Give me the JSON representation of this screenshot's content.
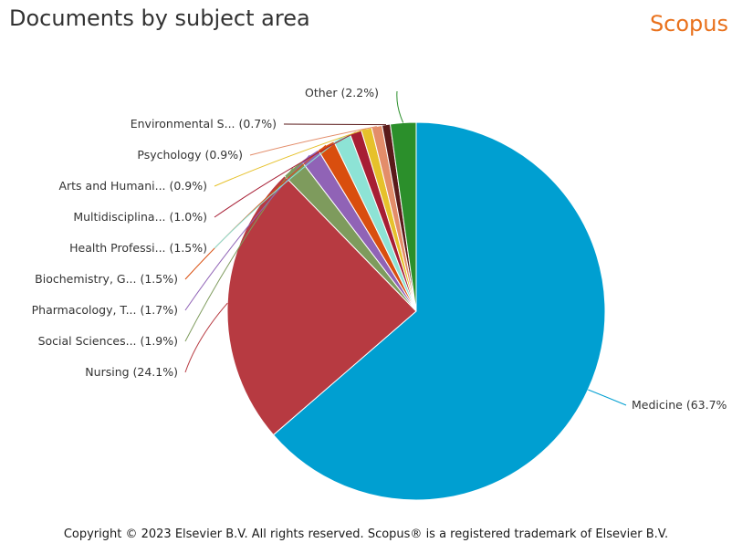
{
  "header": {
    "title": "Documents by subject area",
    "brand": "Scopus"
  },
  "footer": {
    "copyright": "Copyright © 2023 Elsevier B.V. All rights reserved. Scopus® is a registered trademark of Elsevier B.V."
  },
  "chart_data": {
    "type": "pie",
    "title": "Documents by subject area",
    "slices": [
      {
        "name": "Medicine",
        "label": "Medicine (63.7%",
        "value": 63.7,
        "color": "#009fd1"
      },
      {
        "name": "Nursing",
        "label": "Nursing (24.1%)",
        "value": 24.1,
        "color": "#b73a41"
      },
      {
        "name": "Social Sciences...",
        "label": "Social Sciences... (1.9%)",
        "value": 1.9,
        "color": "#7e9b5d"
      },
      {
        "name": "Pharmacology, T...",
        "label": "Pharmacology, T... (1.7%)",
        "value": 1.7,
        "color": "#9063b6"
      },
      {
        "name": "Biochemistry, G...",
        "label": "Biochemistry, G... (1.5%)",
        "value": 1.5,
        "color": "#d94e0e"
      },
      {
        "name": "Health Professi...",
        "label": "Health Professi... (1.5%)",
        "value": 1.5,
        "color": "#8de3d5"
      },
      {
        "name": "Multidisciplina...",
        "label": "Multidisciplina... (1.0%)",
        "value": 1.0,
        "color": "#a71e34"
      },
      {
        "name": "Arts and Humani...",
        "label": "Arts and Humani... (0.9%)",
        "value": 0.9,
        "color": "#e6c12b"
      },
      {
        "name": "Psychology",
        "label": "Psychology (0.9%)",
        "value": 0.9,
        "color": "#e38d6a"
      },
      {
        "name": "Environmental S...",
        "label": "Environmental S... (0.7%)",
        "value": 0.7,
        "color": "#5a1a1a"
      },
      {
        "name": "Other",
        "label": "Other (2.2%)",
        "value": 2.2,
        "color": "#2b8f2b"
      }
    ]
  }
}
